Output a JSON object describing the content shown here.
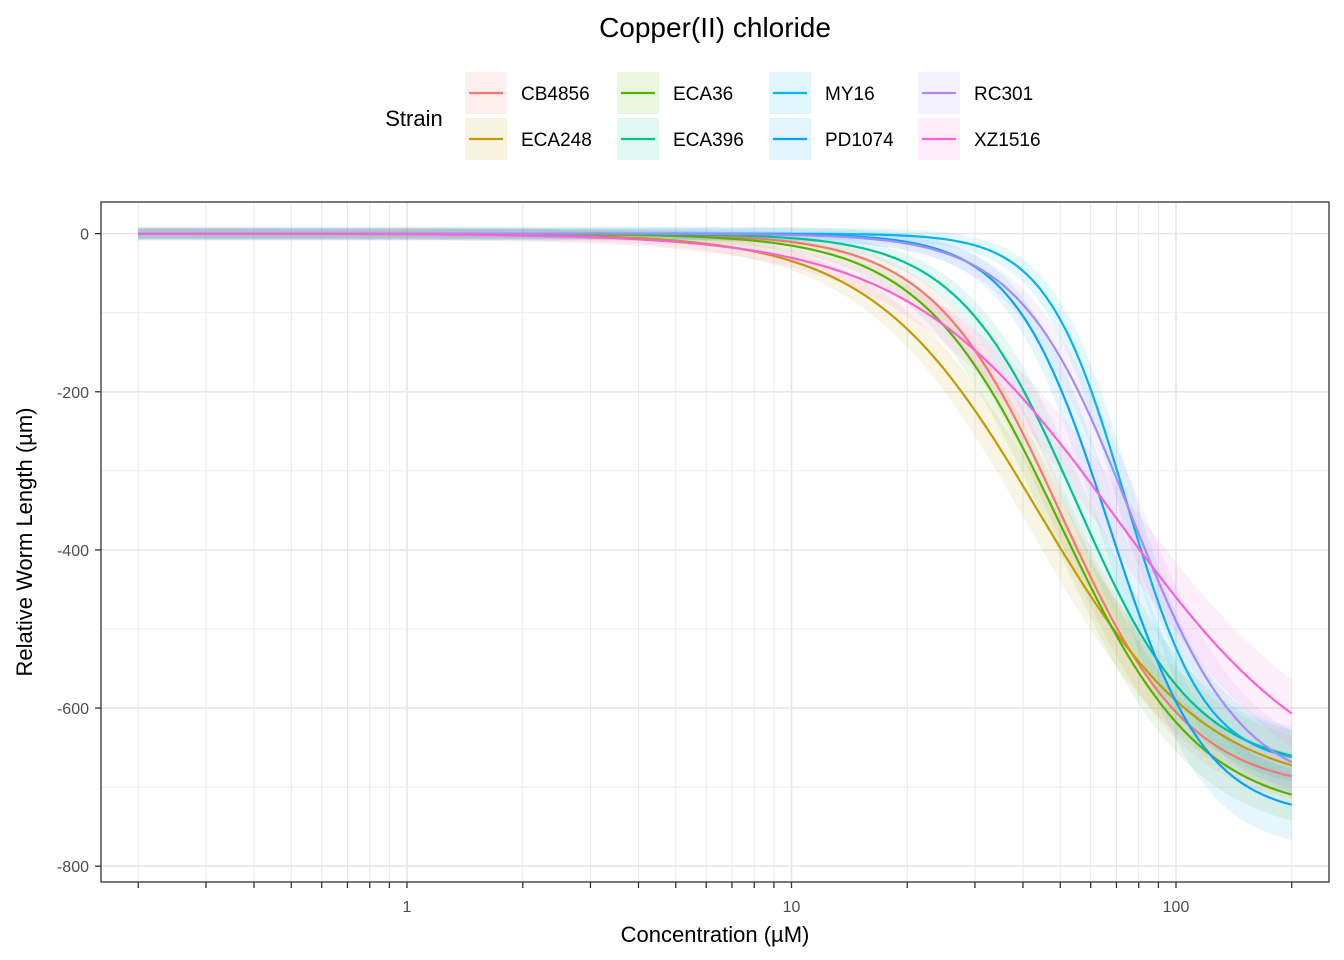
{
  "chart_data": {
    "type": "line",
    "title": "Copper(II) chloride",
    "xlabel": "Concentration (µM)",
    "ylabel": "Relative Worm Length (µm)",
    "xscale": "log10",
    "xlim": [
      0.16,
      250
    ],
    "ylim": [
      -820,
      40
    ],
    "x_ticks": [
      {
        "value": 1,
        "label": "1"
      },
      {
        "value": 10,
        "label": "10"
      },
      {
        "value": 100,
        "label": "100"
      }
    ],
    "y_ticks": [
      {
        "value": 0,
        "label": "0"
      },
      {
        "value": -200,
        "label": "-200"
      },
      {
        "value": -400,
        "label": "-400"
      },
      {
        "value": -600,
        "label": "-600"
      },
      {
        "value": -800,
        "label": "-800"
      }
    ],
    "x_range": [
      0.2,
      200
    ],
    "grid": true,
    "legend_title": "Strain",
    "legend_position": "top",
    "series": [
      {
        "name": "CB4856",
        "color": "#F8766D",
        "bottom": -705,
        "ec50": 50,
        "slope": 2.6,
        "band": 22
      },
      {
        "name": "ECA248",
        "color": "#C49A00",
        "bottom": -705,
        "ec50": 44,
        "slope": 2.0,
        "band": 28
      },
      {
        "name": "ECA36",
        "color": "#53B400",
        "bottom": -735,
        "ec50": 50,
        "slope": 2.4,
        "band": 25
      },
      {
        "name": "ECA396",
        "color": "#00C094",
        "bottom": -678,
        "ec50": 55,
        "slope": 2.8,
        "band": 25
      },
      {
        "name": "MY16",
        "color": "#00B6EB",
        "bottom": -672,
        "ec50": 74,
        "slope": 4.2,
        "band": 30
      },
      {
        "name": "PD1074",
        "color": "#06A4FF",
        "bottom": -738,
        "ec50": 67,
        "slope": 3.5,
        "band": 35
      },
      {
        "name": "RC301",
        "color": "#A58AFF",
        "bottom": -705,
        "ec50": 76,
        "slope": 3.0,
        "band": 30
      },
      {
        "name": "XZ1516",
        "color": "#FB61D7",
        "bottom": -720,
        "ec50": 70,
        "slope": 1.6,
        "band": 30
      }
    ]
  }
}
